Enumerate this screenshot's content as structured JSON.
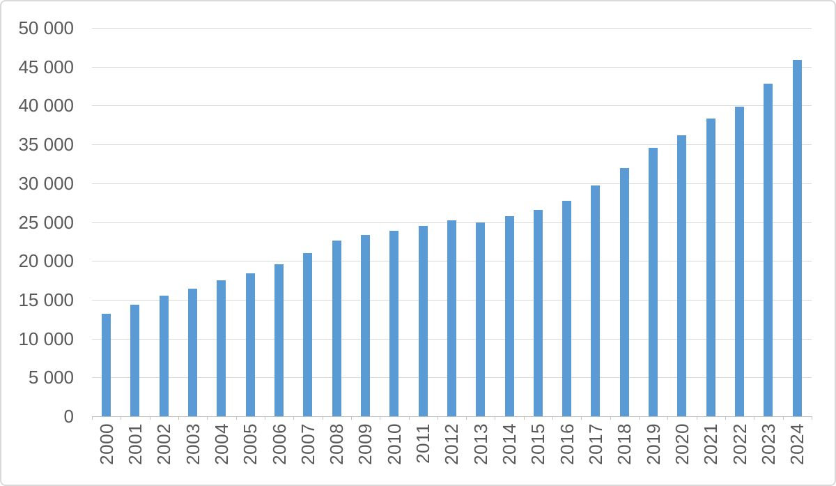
{
  "chart_data": {
    "type": "bar",
    "title": "",
    "xlabel": "",
    "ylabel": "",
    "categories": [
      "2000",
      "2001",
      "2002",
      "2003",
      "2004",
      "2005",
      "2006",
      "2007",
      "2008",
      "2009",
      "2010",
      "2011",
      "2012",
      "2013",
      "2014",
      "2015",
      "2016",
      "2017",
      "2018",
      "2019",
      "2020",
      "2021",
      "2022",
      "2023",
      "2024"
    ],
    "values": [
      13200,
      14400,
      15500,
      16400,
      17500,
      18400,
      19600,
      21000,
      22600,
      23300,
      23900,
      24500,
      25200,
      25000,
      25800,
      26600,
      27700,
      29700,
      32000,
      34600,
      36200,
      38300,
      39900,
      42800,
      45900
    ],
    "ylim": [
      0,
      50000
    ],
    "ytick_interval": 5000,
    "ytick_labels": [
      "0",
      "5 000",
      "10 000",
      "15 000",
      "20 000",
      "25 000",
      "30 000",
      "35 000",
      "40 000",
      "45 000",
      "50 000"
    ],
    "grid": "horizontal",
    "legend": "none",
    "bar_color": "#5B9BD5"
  },
  "colors": {
    "bar": "#5B9BD5",
    "gridline": "#D9D9D9",
    "axis_line": "#BFBFBF",
    "text": "#595959",
    "background": "#FFFFFF",
    "frame_border": "#D9D9D9"
  }
}
